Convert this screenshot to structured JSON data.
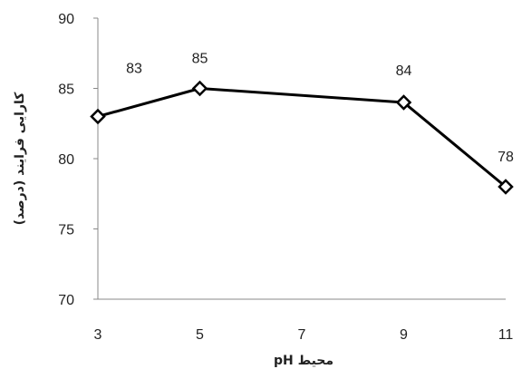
{
  "chart_data": {
    "type": "line",
    "title": "",
    "xlabel": "pH محیط",
    "ylabel": "کارایی فرایند (درصد)",
    "x": [
      3,
      5,
      9,
      11
    ],
    "y": [
      83,
      85,
      84,
      78
    ],
    "data_labels": [
      "83",
      "85",
      "84",
      "78"
    ],
    "x_ticks": [
      "3",
      "5",
      "7",
      "9",
      "11"
    ],
    "y_ticks": [
      "70",
      "75",
      "80",
      "85",
      "90"
    ],
    "xlim": [
      3,
      11
    ],
    "ylim": [
      70,
      90
    ],
    "grid": false,
    "legend": "none",
    "marker": "diamond-open",
    "line_color": "#000000"
  }
}
